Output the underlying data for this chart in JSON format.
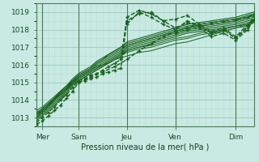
{
  "xlabel": "Pression niveau de la mer( hPa )",
  "background_color": "#c8eae2",
  "plot_bg_color": "#c8eae2",
  "grid_color_major": "#a0c8be",
  "grid_color_minor": "#b8ddd6",
  "line_color": "#1a6020",
  "ylim": [
    1012.5,
    1019.5
  ],
  "xlim": [
    0,
    108
  ],
  "yticks": [
    1013,
    1014,
    1015,
    1016,
    1017,
    1018,
    1019
  ],
  "xtick_positions": [
    3,
    21,
    45,
    69,
    99
  ],
  "xtick_labels": [
    "Mer",
    "Sam",
    "Jeu",
    "Ven",
    "Dim"
  ],
  "vline_positions": [
    3,
    21,
    45,
    69,
    99
  ],
  "series": [
    {
      "x": [
        0,
        3,
        6,
        9,
        12,
        15,
        18,
        21,
        24,
        27,
        30,
        33,
        36,
        39,
        42,
        45,
        51,
        57,
        63,
        69,
        75,
        81,
        87,
        93,
        99,
        105,
        108
      ],
      "y": [
        1012.6,
        1012.8,
        1013.1,
        1013.4,
        1013.7,
        1014.1,
        1014.5,
        1015.0,
        1015.1,
        1015.2,
        1015.3,
        1015.5,
        1015.6,
        1015.7,
        1015.8,
        1018.5,
        1018.9,
        1019.0,
        1018.5,
        1018.1,
        1018.4,
        1018.2,
        1017.8,
        1018.0,
        1017.5,
        1018.2,
        1018.5
      ],
      "dashed": true,
      "marker": true,
      "lw": 1.0
    },
    {
      "x": [
        0,
        3,
        6,
        9,
        12,
        15,
        18,
        21,
        24,
        27,
        30,
        33,
        36,
        39,
        42,
        45,
        51,
        57,
        63,
        69,
        75,
        81,
        87,
        93,
        99,
        105,
        108
      ],
      "y": [
        1012.7,
        1013.0,
        1013.3,
        1013.6,
        1014.0,
        1014.3,
        1014.7,
        1015.1,
        1015.2,
        1015.4,
        1015.5,
        1015.7,
        1015.9,
        1016.1,
        1016.3,
        1018.7,
        1019.1,
        1018.9,
        1018.5,
        1018.6,
        1018.8,
        1018.3,
        1017.9,
        1018.1,
        1017.6,
        1018.3,
        1018.6
      ],
      "dashed": true,
      "marker": true,
      "lw": 1.0
    },
    {
      "x": [
        21,
        27,
        33,
        39,
        45,
        51,
        57,
        63,
        69,
        75,
        81,
        87,
        93,
        99,
        105,
        108
      ],
      "y": [
        1015.0,
        1015.3,
        1015.6,
        1015.9,
        1016.3,
        1016.8,
        1017.2,
        1017.6,
        1017.9,
        1018.1,
        1018.3,
        1018.4,
        1018.5,
        1018.6,
        1018.7,
        1018.9
      ],
      "dashed": true,
      "marker": true,
      "lw": 1.0
    },
    {
      "x": [
        45,
        51,
        57,
        63,
        69,
        75,
        81,
        87,
        93,
        99,
        105,
        108
      ],
      "y": [
        1018.3,
        1019.0,
        1018.7,
        1018.3,
        1018.0,
        1018.5,
        1018.2,
        1017.8,
        1018.0,
        1017.5,
        1018.1,
        1018.8
      ],
      "dashed": true,
      "marker": true,
      "lw": 1.0
    },
    {
      "x": [
        69,
        75,
        81,
        87,
        93,
        99,
        105,
        108
      ],
      "y": [
        1017.8,
        1018.0,
        1018.1,
        1017.6,
        1017.8,
        1017.4,
        1018.0,
        1018.6
      ],
      "dashed": true,
      "marker": true,
      "lw": 1.0
    },
    {
      "x": [
        0,
        3,
        6,
        9,
        12,
        15,
        18,
        21,
        24,
        27,
        30,
        33,
        36,
        39,
        42,
        45,
        51,
        57,
        63,
        69,
        75,
        81,
        87,
        93,
        99,
        105,
        108
      ],
      "y": [
        1012.8,
        1013.1,
        1013.4,
        1013.7,
        1014.0,
        1014.4,
        1014.8,
        1015.1,
        1015.3,
        1015.5,
        1015.7,
        1015.9,
        1016.1,
        1016.3,
        1016.5,
        1016.8,
        1017.0,
        1017.2,
        1017.4,
        1017.6,
        1017.8,
        1017.9,
        1018.0,
        1018.1,
        1018.2,
        1018.4,
        1018.5
      ],
      "dashed": false,
      "marker": false,
      "lw": 0.8
    },
    {
      "x": [
        0,
        3,
        6,
        9,
        12,
        15,
        18,
        21,
        24,
        27,
        30,
        33,
        36,
        39,
        42,
        45,
        51,
        57,
        63,
        69,
        75,
        81,
        87,
        93,
        99,
        105,
        108
      ],
      "y": [
        1012.9,
        1013.2,
        1013.5,
        1013.8,
        1014.1,
        1014.5,
        1014.9,
        1015.2,
        1015.4,
        1015.6,
        1015.8,
        1016.0,
        1016.2,
        1016.4,
        1016.6,
        1016.9,
        1017.1,
        1017.3,
        1017.5,
        1017.7,
        1017.9,
        1018.0,
        1018.1,
        1018.2,
        1018.3,
        1018.5,
        1018.6
      ],
      "dashed": false,
      "marker": false,
      "lw": 0.8
    },
    {
      "x": [
        0,
        3,
        6,
        9,
        12,
        15,
        18,
        21,
        24,
        27,
        30,
        33,
        36,
        39,
        42,
        45,
        51,
        57,
        63,
        69,
        75,
        81,
        87,
        93,
        99,
        105,
        108
      ],
      "y": [
        1013.0,
        1013.3,
        1013.6,
        1013.9,
        1014.2,
        1014.6,
        1015.0,
        1015.3,
        1015.5,
        1015.7,
        1015.9,
        1016.1,
        1016.3,
        1016.5,
        1016.7,
        1017.0,
        1017.2,
        1017.4,
        1017.6,
        1017.8,
        1018.0,
        1018.1,
        1018.2,
        1018.3,
        1018.4,
        1018.6,
        1018.7
      ],
      "dashed": false,
      "marker": false,
      "lw": 0.8
    },
    {
      "x": [
        0,
        3,
        6,
        9,
        12,
        15,
        18,
        21,
        24,
        27,
        30,
        33,
        36,
        39,
        42,
        45,
        51,
        57,
        63,
        69,
        75,
        81,
        87,
        93,
        99,
        105,
        108
      ],
      "y": [
        1013.1,
        1013.4,
        1013.7,
        1014.0,
        1014.4,
        1014.7,
        1015.1,
        1015.4,
        1015.6,
        1015.8,
        1016.1,
        1016.3,
        1016.5,
        1016.7,
        1016.9,
        1017.1,
        1017.3,
        1017.5,
        1017.7,
        1017.9,
        1018.1,
        1018.2,
        1018.3,
        1018.4,
        1018.5,
        1018.7,
        1018.8
      ],
      "dashed": false,
      "marker": false,
      "lw": 0.8
    },
    {
      "x": [
        0,
        3,
        6,
        9,
        12,
        15,
        18,
        21,
        24,
        27,
        30,
        33,
        36,
        39,
        42,
        45,
        51,
        57,
        63,
        69,
        75,
        81,
        87,
        93,
        99,
        105,
        108
      ],
      "y": [
        1013.2,
        1013.5,
        1013.8,
        1014.1,
        1014.5,
        1014.8,
        1015.2,
        1015.5,
        1015.7,
        1015.9,
        1016.2,
        1016.4,
        1016.6,
        1016.8,
        1017.0,
        1017.2,
        1017.4,
        1017.6,
        1017.8,
        1018.0,
        1018.2,
        1018.3,
        1018.4,
        1018.5,
        1018.6,
        1018.8,
        1018.9
      ],
      "dashed": false,
      "marker": false,
      "lw": 0.8
    },
    {
      "x": [
        0,
        3,
        6,
        9,
        12,
        15,
        18,
        21,
        24,
        27,
        30,
        33,
        36,
        39,
        42,
        45,
        51,
        57,
        63,
        69,
        75,
        81,
        87,
        93,
        99,
        105,
        108
      ],
      "y": [
        1013.0,
        1013.3,
        1013.6,
        1014.0,
        1014.3,
        1014.6,
        1015.0,
        1015.3,
        1015.5,
        1015.7,
        1016.0,
        1016.2,
        1016.4,
        1016.6,
        1016.8,
        1017.1,
        1017.3,
        1017.5,
        1017.7,
        1017.9,
        1018.1,
        1018.2,
        1018.3,
        1018.4,
        1018.5,
        1018.7,
        1018.8
      ],
      "dashed": false,
      "marker": false,
      "lw": 0.8
    },
    {
      "x": [
        0,
        3,
        6,
        9,
        12,
        15,
        18,
        21,
        24,
        27,
        30,
        33,
        36,
        39,
        42,
        45,
        51,
        57,
        63,
        69,
        75,
        81,
        87,
        93,
        99,
        105,
        108
      ],
      "y": [
        1013.1,
        1013.4,
        1013.7,
        1014.1,
        1014.4,
        1014.7,
        1015.1,
        1015.4,
        1015.6,
        1015.8,
        1016.1,
        1016.3,
        1016.6,
        1016.8,
        1017.0,
        1017.3,
        1017.5,
        1017.7,
        1017.9,
        1018.1,
        1018.3,
        1018.4,
        1018.5,
        1018.6,
        1018.7,
        1018.9,
        1019.0
      ],
      "dashed": false,
      "marker": false,
      "lw": 0.8
    },
    {
      "x": [
        0,
        3,
        6,
        9,
        12,
        15,
        18,
        21,
        24,
        27,
        30,
        33,
        36,
        39,
        42,
        45,
        51,
        57,
        63,
        69,
        75,
        81,
        87,
        93,
        99,
        105,
        108
      ],
      "y": [
        1013.3,
        1013.5,
        1013.8,
        1014.1,
        1014.4,
        1014.7,
        1015.0,
        1015.2,
        1015.4,
        1015.6,
        1015.8,
        1016.0,
        1016.2,
        1016.4,
        1016.6,
        1016.8,
        1017.0,
        1017.1,
        1017.3,
        1017.5,
        1017.6,
        1017.8,
        1017.9,
        1018.0,
        1018.2,
        1018.3,
        1018.5
      ],
      "dashed": false,
      "marker": false,
      "lw": 0.7
    },
    {
      "x": [
        0,
        3,
        6,
        9,
        12,
        15,
        18,
        21,
        24,
        27,
        30,
        33,
        36,
        39,
        42,
        45,
        51,
        57,
        63,
        69,
        75,
        81,
        87,
        93,
        99,
        105,
        108
      ],
      "y": [
        1013.2,
        1013.4,
        1013.7,
        1014.0,
        1014.3,
        1014.6,
        1014.9,
        1015.1,
        1015.3,
        1015.5,
        1015.7,
        1015.9,
        1016.1,
        1016.3,
        1016.5,
        1016.7,
        1016.9,
        1017.0,
        1017.2,
        1017.4,
        1017.5,
        1017.7,
        1017.8,
        1017.9,
        1018.1,
        1018.2,
        1018.4
      ],
      "dashed": false,
      "marker": false,
      "lw": 0.7
    },
    {
      "x": [
        0,
        3,
        6,
        9,
        12,
        15,
        18,
        21,
        24,
        27,
        30,
        33,
        36,
        39,
        42,
        45,
        51,
        57,
        63,
        69,
        75,
        81,
        87,
        93,
        99,
        105,
        108
      ],
      "y": [
        1013.4,
        1013.6,
        1013.9,
        1014.2,
        1014.5,
        1014.8,
        1015.1,
        1015.3,
        1015.5,
        1015.7,
        1015.9,
        1016.0,
        1016.1,
        1016.3,
        1016.4,
        1016.5,
        1016.7,
        1016.8,
        1017.0,
        1017.2,
        1017.3,
        1017.5,
        1017.7,
        1017.9,
        1018.1,
        1018.3,
        1018.5
      ],
      "dashed": false,
      "marker": false,
      "lw": 0.7
    }
  ]
}
